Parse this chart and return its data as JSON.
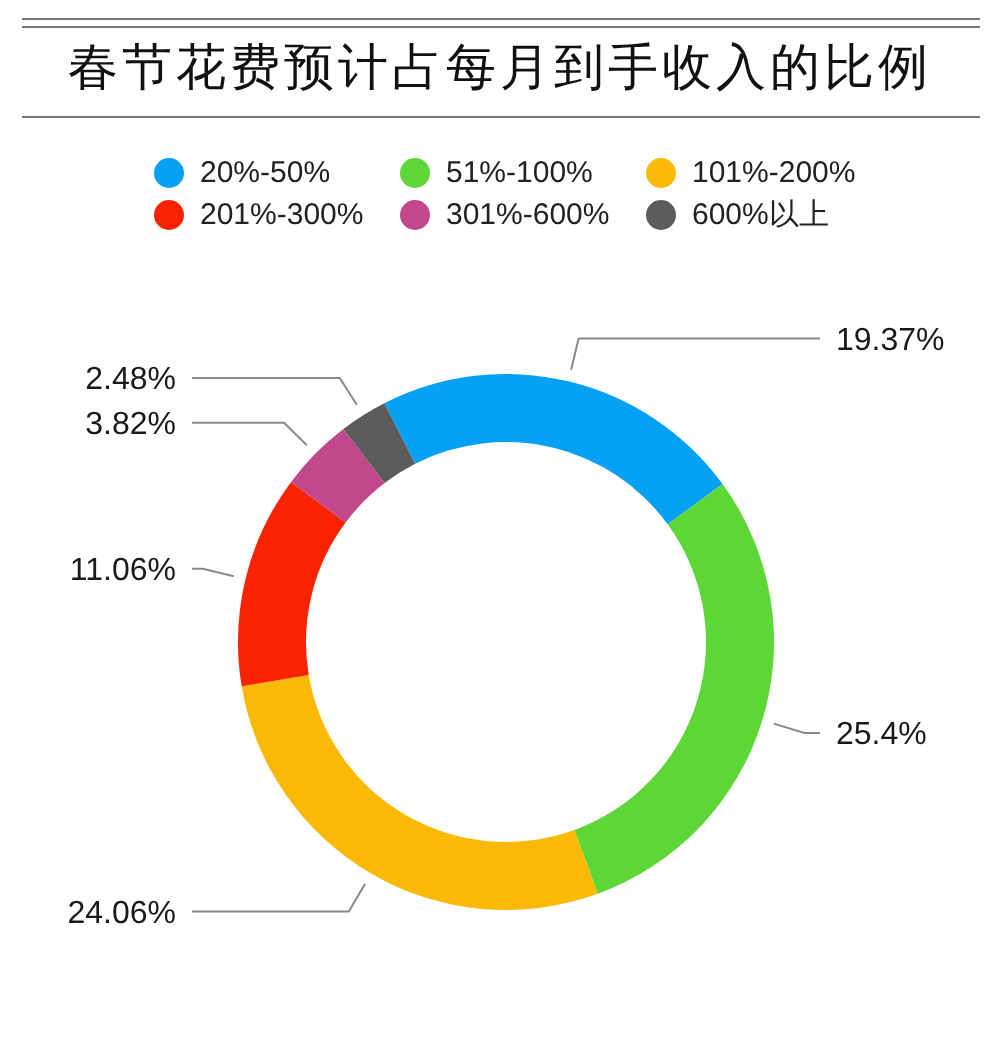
{
  "chart_data": {
    "type": "donut",
    "title": "春节花费预计占每月到手收入的比例",
    "categories": [
      "20%-50%",
      "51%-100%",
      "101%-200%",
      "201%-300%",
      "301%-600%",
      "600%以上"
    ],
    "values": [
      19.37,
      25.4,
      24.06,
      11.06,
      3.82,
      2.48
    ],
    "value_labels": [
      "19.37%",
      "25.4%",
      "24.06%",
      "11.06%",
      "3.82%",
      "2.48%"
    ],
    "colors": [
      "#06a1f5",
      "#5dd638",
      "#f9b904",
      "#f82301",
      "#c1488a",
      "#5c5c5c"
    ],
    "legend": "top"
  }
}
